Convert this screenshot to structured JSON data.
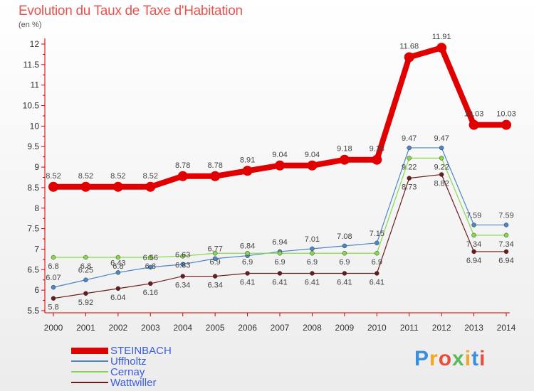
{
  "header": {
    "title": "Evolution du Taux de Taxe d'Habitation",
    "subtitle": "(en %)"
  },
  "chart_data": {
    "type": "line",
    "title": "Evolution du Taux de Taxe d'Habitation",
    "ylabel": "(en %)",
    "xlabel": "",
    "categories": [
      "2000",
      "2001",
      "2002",
      "2003",
      "2004",
      "2005",
      "2006",
      "2007",
      "2008",
      "2009",
      "2010",
      "2011",
      "2012",
      "2013",
      "2014"
    ],
    "ylim": [
      5.5,
      12
    ],
    "yticks": [
      5.5,
      6,
      6.5,
      7,
      7.5,
      8,
      8.5,
      9,
      9.5,
      10,
      10.5,
      11,
      11.5,
      12
    ],
    "grid": false,
    "series": [
      {
        "name": "STEINBACH",
        "color": "#e00000",
        "emphasis": true,
        "values": [
          8.52,
          8.52,
          8.52,
          8.52,
          8.78,
          8.78,
          8.91,
          9.04,
          9.04,
          9.18,
          9.18,
          11.68,
          11.91,
          10.03,
          10.03
        ]
      },
      {
        "name": "Uffholtz",
        "color": "#4b86c8",
        "emphasis": false,
        "values": [
          6.07,
          6.25,
          6.43,
          6.56,
          6.63,
          6.77,
          6.84,
          6.94,
          7.01,
          7.08,
          7.15,
          9.47,
          9.47,
          7.59,
          7.59
        ]
      },
      {
        "name": "Cernay",
        "color": "#86d94a",
        "emphasis": false,
        "values": [
          6.8,
          6.8,
          6.8,
          6.8,
          6.83,
          6.9,
          6.9,
          6.9,
          6.9,
          6.9,
          6.9,
          9.22,
          9.22,
          7.34,
          7.34
        ]
      },
      {
        "name": "Wattwiller",
        "color": "#6b1b1b",
        "emphasis": false,
        "values": [
          5.8,
          5.92,
          6.04,
          6.16,
          6.34,
          6.34,
          6.41,
          6.41,
          6.41,
          6.41,
          6.41,
          8.73,
          8.82,
          6.94,
          6.94
        ]
      }
    ],
    "data_labels": {
      "STEINBACH": [
        "8.52",
        "8.52",
        "8.52",
        "8.52",
        "8.78",
        "8.78",
        "8.91",
        "9.04",
        "9.04",
        "9.18",
        "9.18",
        "11.68",
        "11.91",
        "10.03",
        "10.03"
      ],
      "Uffholtz": [
        "6.07",
        "6.25",
        "6.43",
        "6.56",
        "6.63",
        "6.77",
        "6.84",
        "6.94",
        "7.01",
        "7.08",
        "7.15",
        "9.47",
        "9.47",
        "7.59",
        "7.59"
      ],
      "Cernay": [
        "6.8",
        "6.8",
        "6.8",
        "6.8",
        "6.83",
        "6.9",
        "6.9",
        "6.9",
        "6.9",
        "6.9",
        "6.9",
        "9.22",
        "9.22",
        "7.34",
        "7.34"
      ],
      "Wattwiller": [
        "5.8",
        "5.92",
        "6.04",
        "6.16",
        "6.34",
        "6.34",
        "6.41",
        "6.41",
        "6.41",
        "6.41",
        "6.41",
        "8.73",
        "8.82",
        "6.94",
        "6.94"
      ]
    },
    "legend_position": "bottom-left"
  },
  "legend": {
    "items": [
      "STEINBACH",
      "Uffholtz",
      "Cernay",
      "Wattwiller"
    ]
  },
  "brand": {
    "letters": [
      "P",
      "r",
      "o",
      "x",
      "i",
      "t",
      "i"
    ],
    "colors": [
      "#3a8ede",
      "#f5a623",
      "#e94e3c",
      "#5cb85c",
      "#f5a623",
      "#3a8ede",
      "#e94e3c"
    ]
  }
}
